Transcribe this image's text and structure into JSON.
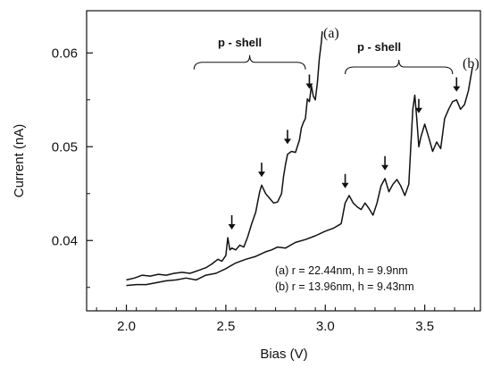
{
  "chart_data": {
    "type": "line",
    "xlabel": "Bias (V)",
    "ylabel": "Current (nA)",
    "xlim": [
      1.8,
      3.78
    ],
    "ylim": [
      0.0325,
      0.0645
    ],
    "x_ticks": [
      2.0,
      2.5,
      3.0,
      3.5
    ],
    "x_tick_labels": [
      "2.0",
      "2.5",
      "3.0",
      "3.5"
    ],
    "y_ticks": [
      0.04,
      0.05,
      0.06
    ],
    "y_tick_labels": [
      "0.04",
      "0.05",
      "0.06"
    ],
    "grid": false,
    "series": [
      {
        "name": "(a)",
        "color": "#111111",
        "points": [
          [
            2.0,
            0.0358
          ],
          [
            2.04,
            0.036
          ],
          [
            2.08,
            0.0363
          ],
          [
            2.12,
            0.0362
          ],
          [
            2.16,
            0.0364
          ],
          [
            2.2,
            0.0363
          ],
          [
            2.24,
            0.0365
          ],
          [
            2.28,
            0.0366
          ],
          [
            2.32,
            0.0365
          ],
          [
            2.36,
            0.0368
          ],
          [
            2.4,
            0.0371
          ],
          [
            2.43,
            0.0375
          ],
          [
            2.46,
            0.038
          ],
          [
            2.48,
            0.0378
          ],
          [
            2.5,
            0.0384
          ],
          [
            2.51,
            0.0403
          ],
          [
            2.52,
            0.039
          ],
          [
            2.53,
            0.0392
          ],
          [
            2.55,
            0.039
          ],
          [
            2.57,
            0.0395
          ],
          [
            2.59,
            0.0393
          ],
          [
            2.61,
            0.0404
          ],
          [
            2.63,
            0.0418
          ],
          [
            2.65,
            0.043
          ],
          [
            2.67,
            0.0452
          ],
          [
            2.68,
            0.0459
          ],
          [
            2.7,
            0.045
          ],
          [
            2.72,
            0.0445
          ],
          [
            2.74,
            0.044
          ],
          [
            2.76,
            0.0441
          ],
          [
            2.78,
            0.045
          ],
          [
            2.79,
            0.0468
          ],
          [
            2.8,
            0.0481
          ],
          [
            2.81,
            0.0492
          ],
          [
            2.83,
            0.0495
          ],
          [
            2.85,
            0.0494
          ],
          [
            2.87,
            0.0507
          ],
          [
            2.88,
            0.052
          ],
          [
            2.89,
            0.0526
          ],
          [
            2.9,
            0.053
          ],
          [
            2.91,
            0.0551
          ],
          [
            2.92,
            0.0548
          ],
          [
            2.93,
            0.0565
          ],
          [
            2.94,
            0.0554
          ],
          [
            2.95,
            0.055
          ],
          [
            2.96,
            0.0568
          ],
          [
            2.97,
            0.0594
          ],
          [
            2.98,
            0.0611
          ],
          [
            2.985,
            0.0623
          ]
        ]
      },
      {
        "name": "(b)",
        "color": "#111111",
        "points": [
          [
            2.0,
            0.0352
          ],
          [
            2.05,
            0.0353
          ],
          [
            2.1,
            0.0353
          ],
          [
            2.15,
            0.0355
          ],
          [
            2.2,
            0.0357
          ],
          [
            2.25,
            0.0358
          ],
          [
            2.3,
            0.036
          ],
          [
            2.35,
            0.0358
          ],
          [
            2.4,
            0.0363
          ],
          [
            2.45,
            0.0365
          ],
          [
            2.5,
            0.037
          ],
          [
            2.55,
            0.0376
          ],
          [
            2.6,
            0.038
          ],
          [
            2.65,
            0.0383
          ],
          [
            2.7,
            0.0388
          ],
          [
            2.73,
            0.039
          ],
          [
            2.76,
            0.0393
          ],
          [
            2.8,
            0.0392
          ],
          [
            2.85,
            0.0398
          ],
          [
            2.9,
            0.0401
          ],
          [
            2.95,
            0.0405
          ],
          [
            3.0,
            0.041
          ],
          [
            3.04,
            0.0413
          ],
          [
            3.08,
            0.0418
          ],
          [
            3.1,
            0.044
          ],
          [
            3.12,
            0.0448
          ],
          [
            3.14,
            0.044
          ],
          [
            3.16,
            0.0436
          ],
          [
            3.18,
            0.0433
          ],
          [
            3.2,
            0.044
          ],
          [
            3.22,
            0.0434
          ],
          [
            3.24,
            0.0427
          ],
          [
            3.26,
            0.044
          ],
          [
            3.28,
            0.0458
          ],
          [
            3.3,
            0.0466
          ],
          [
            3.32,
            0.0452
          ],
          [
            3.34,
            0.046
          ],
          [
            3.36,
            0.0465
          ],
          [
            3.38,
            0.0458
          ],
          [
            3.4,
            0.0448
          ],
          [
            3.42,
            0.046
          ],
          [
            3.43,
            0.05
          ],
          [
            3.44,
            0.054
          ],
          [
            3.45,
            0.0555
          ],
          [
            3.46,
            0.053
          ],
          [
            3.47,
            0.05
          ],
          [
            3.48,
            0.051
          ],
          [
            3.5,
            0.0524
          ],
          [
            3.52,
            0.051
          ],
          [
            3.54,
            0.0495
          ],
          [
            3.56,
            0.0505
          ],
          [
            3.58,
            0.0498
          ],
          [
            3.6,
            0.053
          ],
          [
            3.62,
            0.054
          ],
          [
            3.64,
            0.0548
          ],
          [
            3.66,
            0.055
          ],
          [
            3.68,
            0.054
          ],
          [
            3.7,
            0.0545
          ],
          [
            3.72,
            0.056
          ],
          [
            3.74,
            0.0585
          ]
        ]
      }
    ],
    "annotations": {
      "series_labels": [
        "(a)",
        "(b)"
      ],
      "shell_labels": [
        "p - shell",
        "p - shell"
      ],
      "legend_lines": [
        "(a) r = 22.44nm,  h = 9.9nm",
        "(b) r = 13.96nm,  h = 9.43nm"
      ],
      "arrows_a": [
        [
          2.53,
          0.0406
        ],
        [
          2.68,
          0.0462
        ],
        [
          2.81,
          0.0497
        ],
        [
          2.92,
          0.0556
        ]
      ],
      "arrows_b": [
        [
          3.1,
          0.045
        ],
        [
          3.3,
          0.0469
        ],
        [
          3.47,
          0.053
        ],
        [
          3.66,
          0.0553
        ]
      ],
      "braces": [
        {
          "x_start": 2.34,
          "x_end": 2.9,
          "y": 0.059
        },
        {
          "x_start": 3.1,
          "x_end": 3.64,
          "y": 0.0585
        }
      ]
    }
  }
}
